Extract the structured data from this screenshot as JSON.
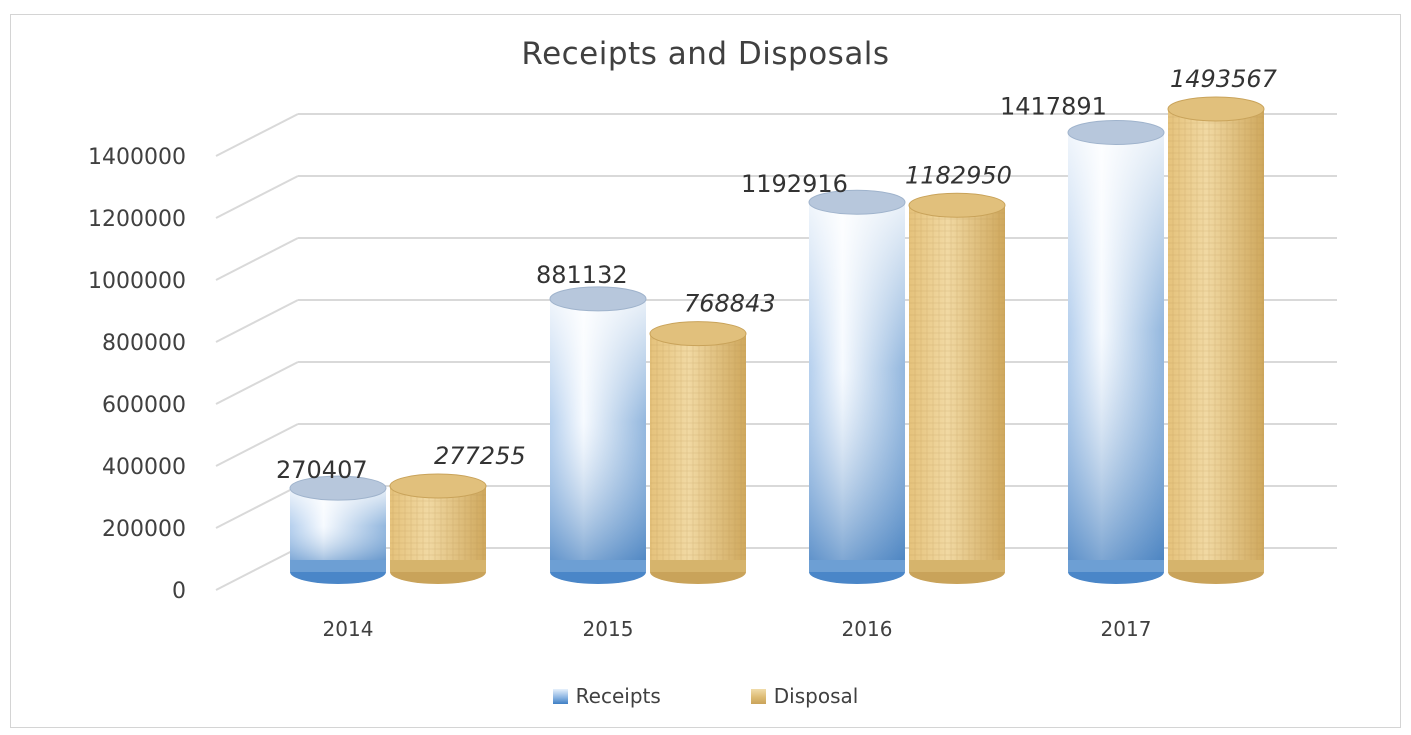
{
  "chart_data": {
    "type": "bar",
    "title": "Receipts and Disposals",
    "categories": [
      "2014",
      "2015",
      "2016",
      "2017"
    ],
    "series": [
      {
        "name": "Receipts",
        "values": [
          270407,
          881132,
          1192916,
          1417891
        ],
        "color": "#5b9bd5"
      },
      {
        "name": "Disposal",
        "values": [
          277255,
          768843,
          1182950,
          1493567
        ],
        "color": "#d9b56a"
      }
    ],
    "yticks": [
      "0",
      "200000",
      "400000",
      "600000",
      "800000",
      "1000000",
      "1200000",
      "1400000"
    ],
    "ylim": [
      0,
      1400000
    ],
    "grid": true,
    "legend_position": "bottom"
  }
}
